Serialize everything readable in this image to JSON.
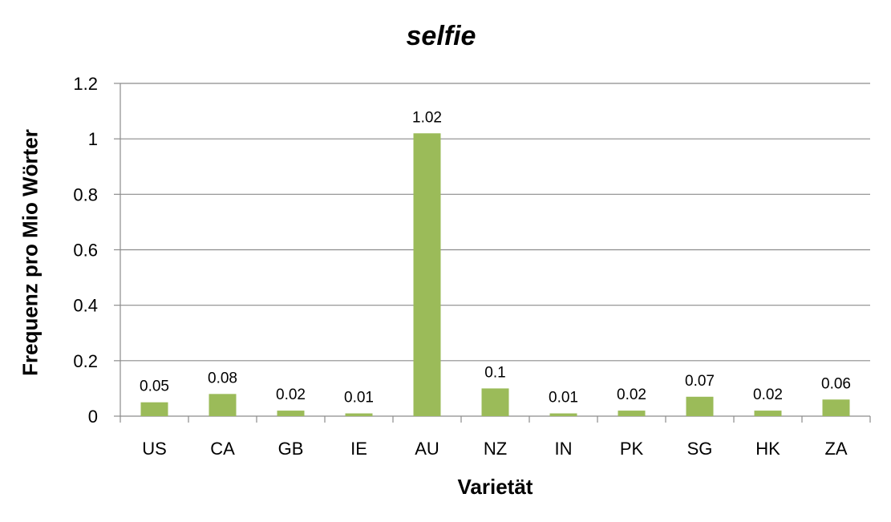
{
  "chart_data": {
    "type": "bar",
    "title": "selfie",
    "xlabel": "Varietät",
    "ylabel": "Frequenz pro Mio Wörter",
    "categories": [
      "US",
      "CA",
      "GB",
      "IE",
      "AU",
      "NZ",
      "IN",
      "PK",
      "SG",
      "HK",
      "ZA"
    ],
    "values": [
      0.05,
      0.08,
      0.02,
      0.01,
      1.02,
      0.1,
      0.01,
      0.02,
      0.07,
      0.02,
      0.06
    ],
    "data_labels": [
      "0.05",
      "0.08",
      "0.02",
      "0.01",
      "1.02",
      "0.1",
      "0.01",
      "0.02",
      "0.07",
      "0.02",
      "0.06"
    ],
    "yticks": [
      0,
      0.2,
      0.4,
      0.6,
      0.8,
      1,
      1.2
    ],
    "ytick_labels": [
      "0",
      "0.2",
      "0.4",
      "0.6",
      "0.8",
      "1",
      "1.2"
    ],
    "ylim": [
      0,
      1.2
    ],
    "grid": true,
    "legend": "none",
    "colors": {
      "bar": "#9bbb59",
      "grid": "#8c8c8c",
      "axis": "#8c8c8c"
    }
  }
}
